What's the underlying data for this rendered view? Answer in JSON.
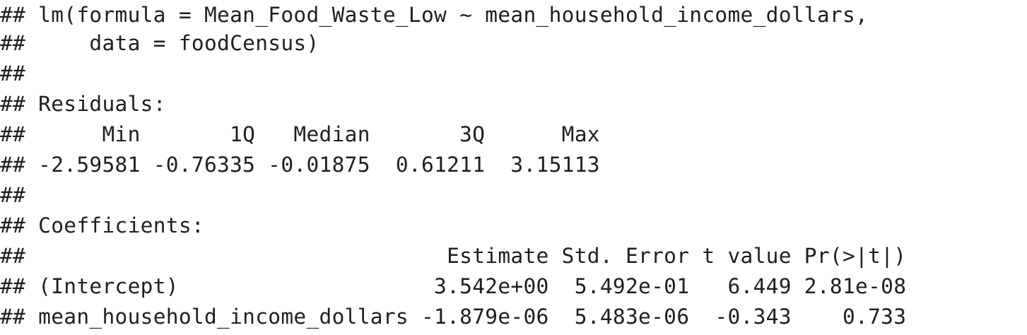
{
  "console": {
    "lines": [
      "## lm(formula = Mean_Food_Waste_Low ~ mean_household_income_dollars,",
      "##     data = foodCensus)",
      "##",
      "## Residuals:",
      "##      Min       1Q   Median       3Q      Max",
      "## -2.59581 -0.76335 -0.01875  0.61211  3.15113",
      "##",
      "## Coefficients:",
      "##                                 Estimate Std. Error t value Pr(>|t|)",
      "## (Intercept)                    3.542e+00  5.492e-01   6.449 2.81e-08",
      "## mean_household_income_dollars -1.879e-06  5.483e-06  -0.343    0.733"
    ]
  }
}
